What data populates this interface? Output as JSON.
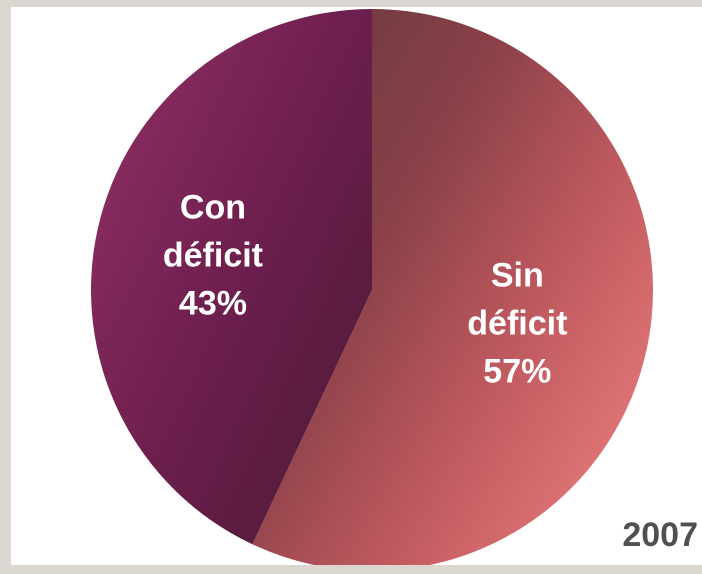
{
  "chart_data": {
    "type": "pie",
    "slices": [
      {
        "name": "Sin déficit",
        "value": 57,
        "label_lines": [
          "Sin",
          "déficit",
          "57%"
        ],
        "gradient": [
          "#e87a7a",
          "#bf5a5f",
          "#8a4048",
          "#6a3a3e"
        ]
      },
      {
        "name": "Con déficit",
        "value": 43,
        "label_lines": [
          "Con",
          "déficit",
          "43%"
        ],
        "gradient": [
          "#8e2e63",
          "#6e1f4e",
          "#4e1a36"
        ]
      }
    ],
    "start_angle_deg": 0,
    "direction": "clockwise"
  },
  "year_label": "2007",
  "background_color": "#dcd6d1"
}
